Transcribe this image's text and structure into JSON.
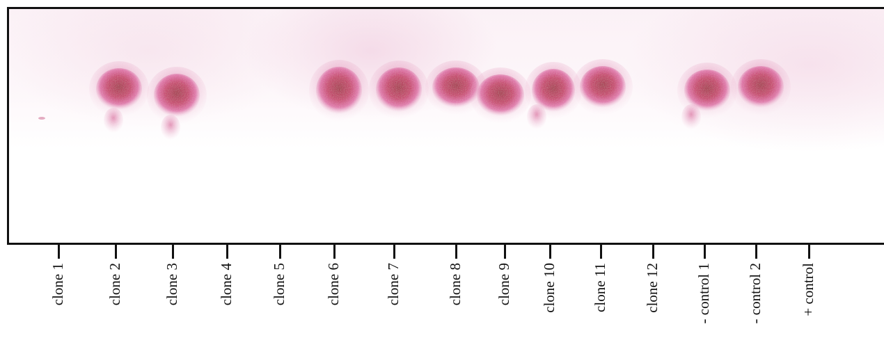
{
  "lanes": [
    {
      "label": "clone 1",
      "spot": null
    },
    {
      "label": "clone 2",
      "spot": "strong"
    },
    {
      "label": "clone 3",
      "spot": "strong"
    },
    {
      "label": "clone 4",
      "spot": null
    },
    {
      "label": "clone 5",
      "spot": null
    },
    {
      "label": "clone 6",
      "spot": "strong"
    },
    {
      "label": "clone 7",
      "spot": "strong"
    },
    {
      "label": "clone 8",
      "spot": "strong"
    },
    {
      "label": "clone 9",
      "spot": "strong"
    },
    {
      "label": "clone 10",
      "spot": "strong"
    },
    {
      "label": "clone 11",
      "spot": "strong"
    },
    {
      "label": "clone 12",
      "spot": null
    },
    {
      "label": "- control 1",
      "spot": "strong"
    },
    {
      "label": "- control 2",
      "spot": "strong"
    },
    {
      "label": "+ control",
      "spot": null
    }
  ],
  "colors": {
    "spot_core": "#b0123f",
    "spot_mid": "#d42c7a",
    "spot_edge": "#f2b4d3",
    "frame": "#111111"
  }
}
